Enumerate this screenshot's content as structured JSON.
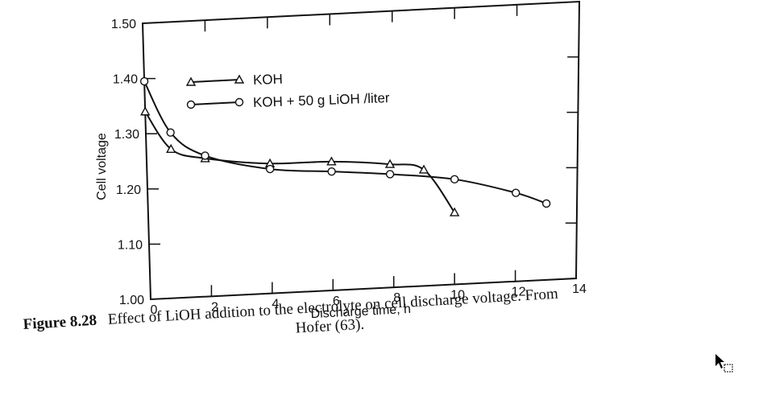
{
  "chart_data": {
    "type": "line",
    "xlabel": "Discharge time, h",
    "ylabel": "Cell voltage",
    "xlim": [
      0,
      14
    ],
    "ylim": [
      1.0,
      1.5
    ],
    "x_ticks": [
      "0",
      "2",
      "4",
      "6",
      "8",
      "10",
      "12",
      "14"
    ],
    "y_ticks": [
      "1.00",
      "1.10",
      "1.20",
      "1.30",
      "1.40",
      "1.50"
    ],
    "grid": false,
    "legend": "top-left",
    "series": [
      {
        "name": "KOH",
        "marker": "triangle",
        "x": [
          0,
          0.8,
          1.9,
          4.0,
          6.0,
          7.9,
          9.0,
          10.0
        ],
        "y": [
          1.34,
          1.27,
          1.25,
          1.235,
          1.233,
          1.223,
          1.21,
          1.13
        ]
      },
      {
        "name": "KOH + 50 g LiOH /liter",
        "marker": "circle",
        "x": [
          0,
          0.8,
          1.9,
          4.0,
          6.0,
          7.9,
          10.0,
          12.0,
          13.0
        ],
        "y": [
          1.395,
          1.3,
          1.255,
          1.225,
          1.215,
          1.205,
          1.19,
          1.16,
          1.138
        ]
      }
    ]
  },
  "caption": {
    "figure_number": "Figure 8.28",
    "text_line1": "Effect of LiOH addition to the electrolyte on cell discharge voltage. From",
    "text_line2": "Hofer (63)."
  },
  "cursor_icon": "arrow-cursor-icon"
}
